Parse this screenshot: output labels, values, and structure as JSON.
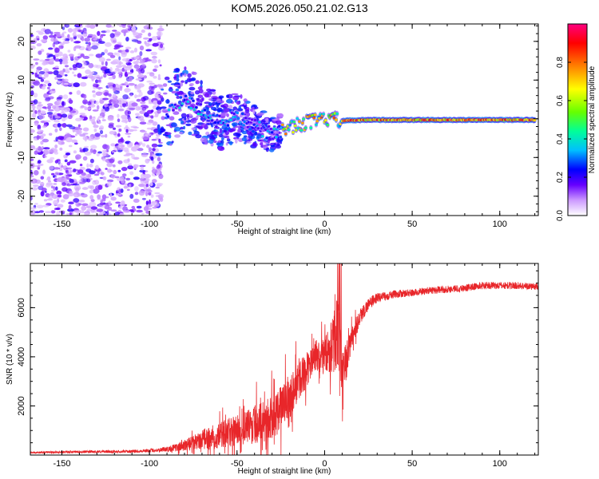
{
  "chart_data": [
    {
      "type": "heatmap",
      "title": "KOM5.2026.050.21.02.G13",
      "xlabel": "Height of straight line (km)",
      "ylabel": "Frequency (Hz)",
      "xlim": [
        -168,
        122
      ],
      "ylim": [
        -25,
        24.5
      ],
      "xticks": [
        -150,
        -100,
        -50,
        0,
        50,
        100
      ],
      "xtick_labels": [
        "-150",
        "-100",
        "-50",
        "0",
        "50",
        "100"
      ],
      "yticks": [
        -20,
        -10,
        0,
        10,
        20
      ],
      "ytick_labels": [
        "-20",
        "-10",
        "0",
        "10",
        "20"
      ],
      "colorbar": {
        "label": "Normalized spectral amplitude",
        "range": [
          0,
          1
        ],
        "ticks": [
          0.0,
          0.2,
          0.4,
          0.6,
          0.8
        ],
        "tick_labels": [
          "0.0",
          "0.2",
          "0.4",
          "0.6",
          "0.8"
        ],
        "colors": [
          "#ffffff",
          "#cc99ff",
          "#6600ff",
          "#0000ff",
          "#00bfff",
          "#00ff99",
          "#66ff00",
          "#ffff00",
          "#ff8000",
          "#ff0000",
          "#ff0080"
        ]
      },
      "feature": {
        "description_points": [
          {
            "x": -88,
            "freq": 2.0
          },
          {
            "x": -80,
            "freq": 5.5
          },
          {
            "x": -70,
            "freq": 2.0
          },
          {
            "x": -60,
            "freq": -1.0
          },
          {
            "x": -50,
            "freq": 0.5
          },
          {
            "x": -40,
            "freq": -2.0
          },
          {
            "x": -30,
            "freq": -4.0
          },
          {
            "x": -20,
            "freq": -2.0
          },
          {
            "x": -10,
            "freq": -1.0
          },
          {
            "x": 0,
            "freq": 0.0
          },
          {
            "x": 10,
            "freq": -0.5
          },
          {
            "x": 25,
            "freq": -0.3
          },
          {
            "x": 120,
            "freq": -0.3
          }
        ]
      }
    },
    {
      "type": "line",
      "title": "",
      "xlabel": "Height of straight line (km)",
      "ylabel": "SNR (10 * v/v)",
      "xlim": [
        -168,
        122
      ],
      "ylim": [
        0,
        7800
      ],
      "xticks": [
        -150,
        -100,
        -50,
        0,
        50,
        100
      ],
      "xtick_labels": [
        "-150",
        "-100",
        "-50",
        "0",
        "50",
        "100"
      ],
      "yticks": [
        2000,
        4000,
        6000
      ],
      "ytick_labels": [
        "2000",
        "4000",
        "6000"
      ],
      "series": [
        {
          "name": "SNR",
          "color": "#e8262a",
          "envelope": {
            "x": [
              -168,
              -140,
              -110,
              -95,
              -85,
              -75,
              -65,
              -55,
              -45,
              -38,
              -30,
              -25,
              -20,
              -15,
              -10,
              -5,
              0,
              5,
              8,
              10,
              12,
              15,
              20,
              25,
              30,
              40,
              50,
              60,
              70,
              80,
              90,
              100,
              110,
              122
            ],
            "y": [
              100,
              130,
              150,
              200,
              300,
              500,
              700,
              900,
              1100,
              1300,
              1500,
              1900,
              2400,
              3000,
              3500,
              3900,
              4100,
              4500,
              5200,
              3000,
              3700,
              4700,
              5600,
              6150,
              6400,
              6550,
              6600,
              6700,
              6750,
              6800,
              6900,
              6900,
              6900,
              6850
            ],
            "spread": [
              40,
              50,
              60,
              80,
              150,
              300,
              500,
              600,
              700,
              800,
              900,
              900,
              900,
              800,
              700,
              600,
              700,
              1200,
              1700,
              1100,
              800,
              500,
              350,
              250,
              200,
              160,
              150,
              150,
              150,
              150,
              150,
              150,
              150,
              140
            ]
          }
        }
      ]
    }
  ]
}
